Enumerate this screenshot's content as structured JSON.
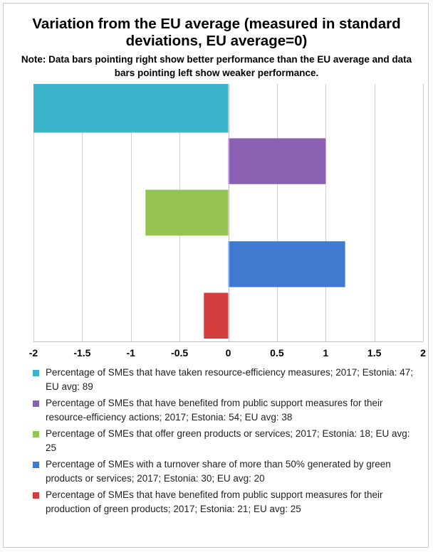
{
  "chart_data": {
    "type": "bar",
    "orientation": "horizontal",
    "title": "Variation from the EU average (measured in standard deviations, EU average=0)",
    "subtitle": "Note: Data bars pointing right show better performance than the EU average and data bars pointing left show weaker performance.",
    "xlim": [
      -2,
      2
    ],
    "xticks": [
      "-2",
      "-1.5",
      "-1",
      "-0.5",
      "0",
      "0.5",
      "1",
      "1.5",
      "2"
    ],
    "xtick_values": [
      -2,
      -1.5,
      -1,
      -0.5,
      0,
      0.5,
      1,
      1.5,
      2
    ],
    "grid": "vertical",
    "legend_position": "bottom",
    "series": [
      {
        "name": "Percentage of SMEs that have taken resource-efficiency measures; 2017; Estonia: 47; EU avg: 89",
        "value": -2.0,
        "color": "#3cb4cc"
      },
      {
        "name": "Percentage of SMEs that have benefited from public support measures for their resource-efficiency actions; 2017; Estonia: 54; EU avg: 38",
        "value": 1.0,
        "color": "#8a60b2"
      },
      {
        "name": "Percentage of SMEs that offer green products or services; 2017; Estonia: 18; EU avg: 25",
        "value": -0.85,
        "color": "#93c350"
      },
      {
        "name": "Percentage of SMEs with a turnover share of more than 50% generated by green products or services; 2017; Estonia: 30; EU avg: 20",
        "value": 1.2,
        "color": "#3f7ad0"
      },
      {
        "name": "Percentage of SMEs that have benefited from public support measures for their production of green products; 2017; Estonia: 21; EU avg: 25",
        "value": -0.25,
        "color": "#d33c3c"
      }
    ]
  }
}
